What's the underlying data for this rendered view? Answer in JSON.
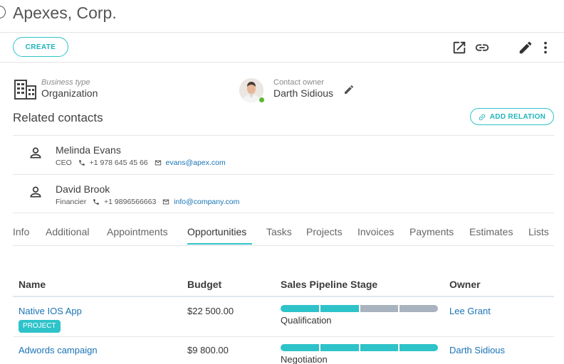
{
  "header": {
    "title": "Apexes, Corp."
  },
  "toolbar": {
    "create_label": "CREATE"
  },
  "business": {
    "type_label": "Business type",
    "type_value": "Organization"
  },
  "owner": {
    "label": "Contact owner",
    "name": "Darth Sidious"
  },
  "related": {
    "title": "Related contacts",
    "add_label": "ADD RELATION",
    "contacts": [
      {
        "name": "Melinda Evans",
        "role": "CEO",
        "phone": "+1 978 645 45 66",
        "email": "evans@apex.com"
      },
      {
        "name": "David Brook",
        "role": "Financier",
        "phone": "+1 9896566663",
        "email": "info@company.com"
      }
    ]
  },
  "tabs": [
    {
      "label": "Info"
    },
    {
      "label": "Additional"
    },
    {
      "label": "Appointments"
    },
    {
      "label": "Opportunities",
      "active": true
    },
    {
      "label": "Tasks"
    },
    {
      "label": "Projects"
    },
    {
      "label": "Invoices"
    },
    {
      "label": "Payments"
    },
    {
      "label": "Estimates"
    },
    {
      "label": "Lists"
    }
  ],
  "opportunities": {
    "columns": [
      "Name",
      "Budget",
      "Sales Pipeline Stage",
      "Owner"
    ],
    "rows": [
      {
        "name": "Native IOS App",
        "tag": "PROJECT",
        "budget": "$22 500.00",
        "stage": "Qualification",
        "stage_index": 2,
        "stage_count": 4,
        "owner": "Lee Grant"
      },
      {
        "name": "Adwords campaign",
        "tag": "",
        "budget": "$9 800.00",
        "stage": "Negotiation",
        "stage_index": 4,
        "stage_count": 4,
        "owner": "Darth Sidious"
      }
    ]
  },
  "colors": {
    "accent": "#2ec3c9",
    "link": "#1a73b5",
    "stage_inactive": "#a9b3bf",
    "online": "#5ab630"
  }
}
